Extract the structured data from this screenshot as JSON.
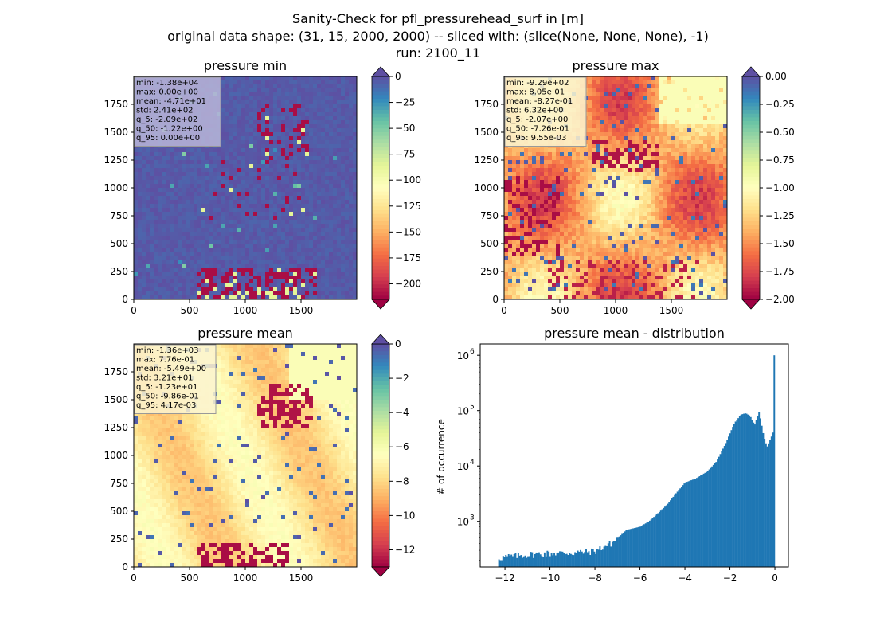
{
  "figure": {
    "title_lines": [
      "Sanity-Check for pfl_pressurehead_surf in [m]",
      "original data shape: (31, 15, 2000, 2000) -- sliced with: (slice(None, None, None), -1)",
      "run: 2100_11"
    ]
  },
  "chart_data": [
    {
      "type": "heatmap",
      "title": "pressure min",
      "colormap": "Spectral",
      "colorbar": {
        "vmin": -215,
        "vmax": 0,
        "extend": "both",
        "ticks": [
          0,
          -25,
          -50,
          -75,
          -100,
          -125,
          -150,
          -175,
          -200
        ],
        "tick_labels": [
          "0",
          "−25",
          "−50",
          "−75",
          "−100",
          "−125",
          "−150",
          "−175",
          "−200"
        ]
      },
      "xlim": [
        0,
        2000
      ],
      "ylim": [
        0,
        2000
      ],
      "xticks": [
        0,
        500,
        1000,
        1500
      ],
      "xtick_labels": [
        "0",
        "500",
        "1000",
        "1500"
      ],
      "yticks": [
        0,
        250,
        500,
        750,
        1000,
        1250,
        1500,
        1750
      ],
      "ytick_labels": [
        "0",
        "250",
        "500",
        "750",
        "1000",
        "1250",
        "1500",
        "1750"
      ],
      "stats": [
        "min: -1.38e+04",
        "max: 0.00e+00",
        "mean: -4.71e+01",
        "std: 2.41e+02",
        "q_5: -2.09e+02",
        "q_50: -1.22e+00",
        "q_95: 0.00e+00"
      ],
      "stats_box_color": "#b8b5d8"
    },
    {
      "type": "heatmap",
      "title": "pressure max",
      "colormap": "Spectral",
      "colorbar": {
        "vmin": -2.0,
        "vmax": 0.0,
        "extend": "both",
        "ticks": [
          0.0,
          -0.25,
          -0.5,
          -0.75,
          -1.0,
          -1.25,
          -1.5,
          -1.75,
          -2.0
        ],
        "tick_labels": [
          "0.00",
          "−0.25",
          "−0.50",
          "−0.75",
          "−1.00",
          "−1.25",
          "−1.50",
          "−1.75",
          "−2.00"
        ]
      },
      "xlim": [
        0,
        2000
      ],
      "ylim": [
        0,
        2000
      ],
      "xticks": [
        0,
        500,
        1000,
        1500
      ],
      "xtick_labels": [
        "0",
        "500",
        "1000",
        "1500"
      ],
      "yticks": [
        0,
        250,
        500,
        750,
        1000,
        1250,
        1500,
        1750
      ],
      "ytick_labels": [
        "0",
        "250",
        "500",
        "750",
        "1000",
        "1250",
        "1500",
        "1750"
      ],
      "stats": [
        "min: -9.29e+02",
        "max: 8.05e-01",
        "mean: -8.27e-01",
        "std: 6.32e+00",
        "q_5: -2.07e+00",
        "q_50: -7.26e-01",
        "q_95: 9.55e-03"
      ],
      "stats_box_color": "#fbf3cf"
    },
    {
      "type": "heatmap",
      "title": "pressure mean",
      "colormap": "Spectral",
      "colorbar": {
        "vmin": -13,
        "vmax": 0,
        "extend": "both",
        "ticks": [
          0,
          -2,
          -4,
          -6,
          -8,
          -10,
          -12
        ],
        "tick_labels": [
          "0",
          "−2",
          "−4",
          "−6",
          "−8",
          "−10",
          "−12"
        ]
      },
      "xlim": [
        0,
        2000
      ],
      "ylim": [
        0,
        2000
      ],
      "xticks": [
        0,
        500,
        1000,
        1500
      ],
      "xtick_labels": [
        "0",
        "500",
        "1000",
        "1500"
      ],
      "yticks": [
        0,
        250,
        500,
        750,
        1000,
        1250,
        1500,
        1750
      ],
      "ytick_labels": [
        "0",
        "250",
        "500",
        "750",
        "1000",
        "1250",
        "1500",
        "1750"
      ],
      "stats": [
        "min: -1.36e+03",
        "max: 7.76e-01",
        "mean: -5.49e+00",
        "std: 3.21e+01",
        "q_5: -1.23e+01",
        "q_50: -9.86e-01",
        "q_95: 4.17e-03"
      ],
      "stats_box_color": "#fbf3cf"
    },
    {
      "type": "bar",
      "title": "pressure mean - distribution",
      "ylabel": "# of occurrence",
      "xlabel": "",
      "yscale": "log",
      "color": "#1f77b4",
      "xlim": [
        -13.1,
        0.6
      ],
      "ylim": [
        150,
        1600000
      ],
      "xticks": [
        -12,
        -10,
        -8,
        -6,
        -4,
        -2,
        0
      ],
      "xtick_labels": [
        "−12",
        "−10",
        "−8",
        "−6",
        "−4",
        "−2",
        "0"
      ],
      "yticks": [
        1000,
        10000,
        100000,
        1000000
      ],
      "ytick_labels": [
        "10",
        "10",
        "10",
        "10"
      ],
      "ytick_exponents": [
        "3",
        "4",
        "5",
        "6"
      ],
      "hist": {
        "x": [
          -12.3,
          -11.0,
          -10.0,
          -9.0,
          -8.0,
          -7.2,
          -6.6,
          -6.0,
          -5.6,
          -5.2,
          -4.8,
          -4.4,
          -4.0,
          -3.5,
          -3.0,
          -2.6,
          -2.2,
          -1.8,
          -1.5,
          -1.3,
          -1.1,
          -0.9,
          -0.7,
          -0.5,
          -0.35,
          -0.2,
          -0.05,
          0.0
        ],
        "y": [
          220,
          250,
          265,
          270,
          290,
          420,
          700,
          800,
          1000,
          1400,
          2000,
          3200,
          5000,
          6000,
          8000,
          12000,
          25000,
          60000,
          85000,
          90000,
          80000,
          55000,
          95000,
          35000,
          22000,
          30000,
          45000,
          1000000
        ],
        "bin_lo": -12.3,
        "bin_hi": 0.0,
        "bins": 200
      }
    }
  ]
}
